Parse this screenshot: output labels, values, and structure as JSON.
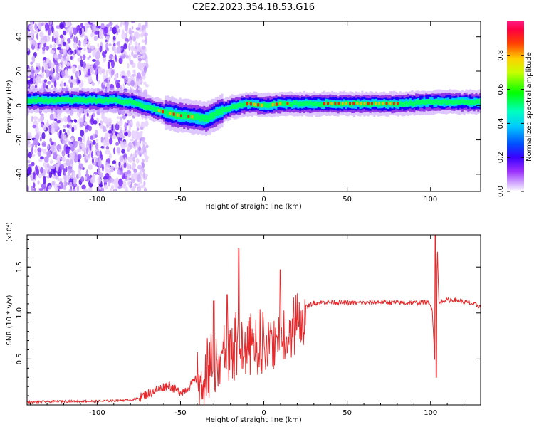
{
  "title": "C2E2.2023.354.18.53.G16",
  "chart_data": [
    {
      "type": "heatmap",
      "xlabel": "Height of straight line (km)",
      "ylabel": "Frequency (Hz)",
      "xlim": [
        -142,
        130
      ],
      "ylim": [
        -50,
        49
      ],
      "xticks": [
        -100,
        -50,
        0,
        50,
        100
      ],
      "yticks": [
        -40,
        -20,
        0,
        20,
        40
      ],
      "colorbar": {
        "label": "Normalized spectral amplitude",
        "range": [
          0.0,
          1.0
        ],
        "ticks": [
          0.0,
          0.2,
          0.4,
          0.6,
          0.8
        ],
        "colormap": [
          "#ffffff",
          "#c9a3ff",
          "#8a2be2",
          "#4000ff",
          "#0000ff",
          "#00bfff",
          "#00ffd0",
          "#00ff00",
          "#aaff00",
          "#ffff00",
          "#ff8000",
          "#ff0000",
          "#ff1493"
        ]
      },
      "ridge": {
        "x": [
          -142,
          -130,
          -115,
          -100,
          -90,
          -80,
          -70,
          -60,
          -50,
          -40,
          -35,
          -30,
          -25,
          -20,
          -15,
          -10,
          0,
          10,
          20,
          40,
          60,
          80,
          100,
          110,
          130
        ],
        "y": [
          3,
          3,
          3,
          3,
          3,
          2,
          -1,
          -4,
          -6,
          -7,
          -8,
          -5,
          -3,
          -1,
          0,
          1,
          0,
          1,
          1,
          1,
          1,
          1,
          2,
          2,
          2
        ],
        "peak_amplitude": 0.9
      },
      "noise_region_x": [
        -142,
        -78
      ]
    },
    {
      "type": "line",
      "xlabel": "Height of straight line (km)",
      "ylabel": "SNR (10 * v/v)",
      "y_multiplier": "(x10⁴)",
      "xlim": [
        -142,
        130
      ],
      "ylim": [
        0.0,
        1.85
      ],
      "xticks": [
        -100,
        -50,
        0,
        50,
        100
      ],
      "yticks": [
        0.5,
        1.0,
        1.5
      ],
      "color": "#e8282a",
      "series": [
        {
          "x": [
            -142,
            -120,
            -100,
            -85,
            -77,
            -70,
            -62,
            -57,
            -52,
            -48,
            -42,
            -38,
            -34,
            -30,
            -26,
            -22,
            -18,
            -16,
            -14,
            -10,
            -5,
            0,
            5,
            9,
            11,
            15,
            20,
            25,
            30,
            40,
            50,
            60,
            70,
            80,
            90,
            98,
            101,
            103,
            104,
            105,
            108,
            115,
            125,
            130
          ],
          "y": [
            0.03,
            0.04,
            0.04,
            0.05,
            0.06,
            0.12,
            0.18,
            0.22,
            0.15,
            0.15,
            0.25,
            0.35,
            0.45,
            0.55,
            0.62,
            0.6,
            0.7,
            0.78,
            0.75,
            0.72,
            0.75,
            0.8,
            0.82,
            0.88,
            0.9,
            0.93,
            1.0,
            1.06,
            1.11,
            1.12,
            1.11,
            1.11,
            1.12,
            1.11,
            1.11,
            1.12,
            1.05,
            0.3,
            1.72,
            1.1,
            1.14,
            1.14,
            1.1,
            1.07
          ]
        }
      ],
      "spikes": [
        {
          "x": -30,
          "y": 1.13
        },
        {
          "x": -22,
          "y": 1.2
        },
        {
          "x": -15,
          "y": 1.7
        },
        {
          "x": 10,
          "y": 1.47
        },
        {
          "x": 103,
          "y": 1.9
        },
        {
          "x": 103.5,
          "y": 0.3
        }
      ]
    }
  ]
}
